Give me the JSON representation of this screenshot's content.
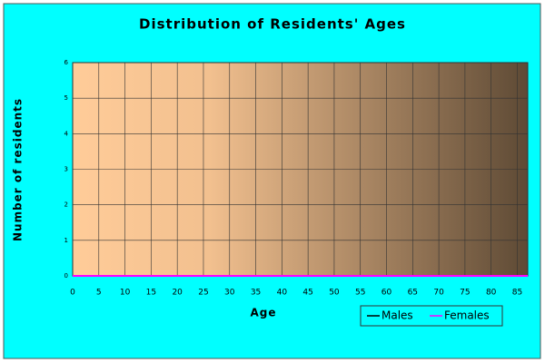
{
  "chart_data": {
    "type": "line",
    "title": "Distribution of Residents' Ages",
    "x_label": "Age",
    "y_label": "Number of residents",
    "x": [
      0,
      5,
      10,
      15,
      20,
      25,
      30,
      35,
      40,
      45,
      50,
      55,
      60,
      65,
      70,
      75,
      80,
      85,
      87
    ],
    "series": [
      {
        "name": "Males",
        "color": "#000000",
        "values": [
          0,
          0,
          0,
          0,
          0,
          0,
          0,
          0,
          0,
          0,
          0,
          0,
          0,
          0,
          0,
          0,
          0,
          0,
          0
        ]
      },
      {
        "name": "Females",
        "color": "#ff00ff",
        "values": [
          0,
          0,
          0,
          0,
          0,
          0,
          0,
          0,
          0,
          0,
          0,
          0,
          0,
          0,
          0,
          0,
          0,
          0,
          0
        ]
      }
    ],
    "xlim": [
      0,
      87
    ],
    "xticks": [
      0,
      5,
      10,
      15,
      20,
      25,
      30,
      35,
      40,
      45,
      50,
      55,
      60,
      65,
      70,
      75,
      80,
      85
    ],
    "ylim": [
      0,
      6
    ],
    "yticks": [
      0,
      1,
      2,
      3,
      4,
      5,
      6
    ],
    "grid": true
  }
}
